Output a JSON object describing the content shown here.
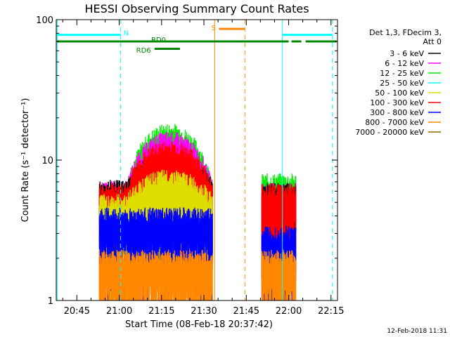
{
  "chart_data": {
    "type": "line",
    "title": "HESSI Observing Summary Count Rates",
    "xlabel": "Start Time (08-Feb-18 20:37:42)",
    "ylabel": "Count Rate (s⁻¹ detector⁻¹)",
    "y_scale": "log",
    "ylim": [
      1,
      100
    ],
    "xlim_minutes": [
      37.7,
      137.3
    ],
    "x_ticks": [
      {
        "label": "20:45",
        "minutes": 45
      },
      {
        "label": "21:00",
        "minutes": 60
      },
      {
        "label": "21:15",
        "minutes": 75
      },
      {
        "label": "21:30",
        "minutes": 90
      },
      {
        "label": "21:45",
        "minutes": 105
      },
      {
        "label": "22:00",
        "minutes": 120
      },
      {
        "label": "22:15",
        "minutes": 135
      }
    ],
    "y_ticks": [
      {
        "label": "1",
        "value": 1
      },
      {
        "label": "10",
        "value": 10
      },
      {
        "label": "100",
        "value": 100
      }
    ],
    "legend": {
      "header": [
        "Det 1,3, FDecim 3,",
        "Att 0"
      ],
      "placement": "right"
    },
    "series": [
      {
        "name": "3 - 6 keV",
        "color": "#000000",
        "segments": [
          {
            "start": 53,
            "end": 93,
            "base": 6.3,
            "peak": 10
          },
          {
            "start": 110.5,
            "end": 122.5,
            "base": 6.0,
            "peak": 6.0
          }
        ]
      },
      {
        "name": "6 - 12 keV",
        "color": "#ff00ff",
        "segments": [
          {
            "start": 53,
            "end": 93,
            "base": 6.2,
            "peak": 14
          },
          {
            "start": 110.5,
            "end": 122.5,
            "base": 6.0,
            "peak": 6.0
          }
        ]
      },
      {
        "name": "12 - 25 keV",
        "color": "#00ee00",
        "segments": [
          {
            "start": 53,
            "end": 93,
            "base": 6.0,
            "peak": 16
          },
          {
            "start": 110.5,
            "end": 122.5,
            "base": 7.0,
            "peak": 7.0
          }
        ]
      },
      {
        "name": "25 - 50 keV",
        "color": "#00ffff",
        "segments": []
      },
      {
        "name": "50 - 100 keV",
        "color": "#dddd00",
        "segments": [
          {
            "start": 53,
            "end": 93,
            "base": 5.0,
            "peak": 7.5
          }
        ]
      },
      {
        "name": "100 - 300 keV",
        "color": "#ff0000",
        "segments": [
          {
            "start": 53,
            "end": 93,
            "base": 6.0,
            "peak": 12
          },
          {
            "start": 110.5,
            "end": 122.5,
            "base": 6.0,
            "peak": 6.0
          }
        ]
      },
      {
        "name": "300 - 800 keV",
        "color": "#0000ff",
        "segments": [
          {
            "start": 53,
            "end": 93,
            "base": 4.0,
            "peak": 4.0
          },
          {
            "start": 110.5,
            "end": 122.5,
            "base": 3.0,
            "peak": 3.0
          }
        ]
      },
      {
        "name": "800 - 7000 keV",
        "color": "#ff8800",
        "segments": [
          {
            "start": 53,
            "end": 93,
            "base": 2.0,
            "peak": 2.0
          },
          {
            "start": 110.5,
            "end": 122.5,
            "base": 2.0,
            "peak": 2.0
          }
        ]
      },
      {
        "name": "7000 - 20000 keV",
        "color": "#996600",
        "segments": []
      }
    ],
    "flags": [
      {
        "label": "N",
        "color": "#00ffff",
        "level": 78,
        "spans": [
          [
            38,
            60.5
          ],
          [
            117.8,
            135.5
          ]
        ],
        "vlines": [
          [
            60.5,
            "dash"
          ],
          [
            117.8,
            "solid"
          ],
          [
            135.5,
            "dash"
          ],
          [
            38,
            "solid"
          ]
        ]
      },
      {
        "label": "S",
        "color": "#ff8800",
        "level": 86,
        "spans": [
          [
            95.3,
            104.5
          ]
        ],
        "vlines": [
          [
            93.8,
            "solid"
          ],
          [
            104.5,
            "dash"
          ]
        ]
      },
      {
        "label": "RD0",
        "color": "#008800",
        "level": 70,
        "spans": [
          [
            38,
            120
          ],
          [
            121,
            124.5
          ],
          [
            126,
            137
          ]
        ],
        "vlines": []
      },
      {
        "label": "RD6",
        "color": "#008800",
        "level": 62,
        "spans": [
          [
            72.5,
            81.5
          ]
        ],
        "vlines": []
      }
    ]
  },
  "footer": {
    "date_stamp": "12-Feb-2018 11:31"
  }
}
